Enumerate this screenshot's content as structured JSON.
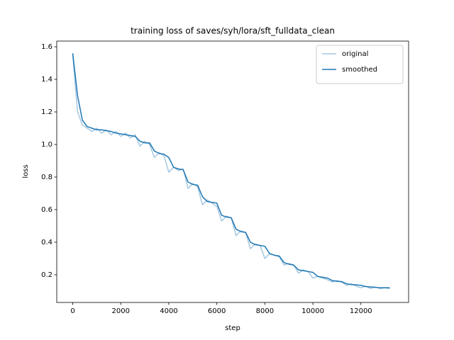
{
  "chart_data": {
    "type": "line",
    "title": "training loss of saves/syh/lora/sft_fulldata_clean",
    "xlabel": "step",
    "ylabel": "loss",
    "x": [
      0,
      200,
      400,
      600,
      800,
      1000,
      1200,
      1400,
      1600,
      1800,
      2000,
      2200,
      2400,
      2600,
      2800,
      3000,
      3200,
      3400,
      3600,
      3800,
      4000,
      4200,
      4400,
      4600,
      4800,
      5000,
      5200,
      5400,
      5600,
      5800,
      6000,
      6200,
      6400,
      6600,
      6800,
      7000,
      7200,
      7400,
      7600,
      7800,
      8000,
      8200,
      8400,
      8600,
      8800,
      9000,
      9200,
      9400,
      9600,
      9800,
      10000,
      10200,
      10400,
      10600,
      10800,
      11000,
      11200,
      11400,
      11600,
      11800,
      12000,
      12200,
      12400,
      12600,
      12800,
      13000,
      13200
    ],
    "series": [
      {
        "name": "original",
        "color": "#a5c8e1",
        "values": [
          1.55,
          1.2,
          1.12,
          1.1,
          1.08,
          1.1,
          1.07,
          1.09,
          1.06,
          1.08,
          1.05,
          1.07,
          1.04,
          1.06,
          0.99,
          1.02,
          1.0,
          0.92,
          0.95,
          0.93,
          0.83,
          0.86,
          0.84,
          0.85,
          0.73,
          0.76,
          0.74,
          0.63,
          0.66,
          0.64,
          0.62,
          0.53,
          0.56,
          0.55,
          0.44,
          0.47,
          0.46,
          0.36,
          0.39,
          0.38,
          0.3,
          0.33,
          0.32,
          0.31,
          0.26,
          0.27,
          0.26,
          0.21,
          0.23,
          0.22,
          0.18,
          0.19,
          0.18,
          0.17,
          0.155,
          0.165,
          0.155,
          0.135,
          0.145,
          0.13,
          0.12,
          0.13,
          0.115,
          0.125,
          0.115,
          0.12,
          0.115
        ]
      },
      {
        "name": "smoothed",
        "color": "#1f77b4",
        "values": [
          1.56,
          1.3,
          1.15,
          1.11,
          1.1,
          1.09,
          1.09,
          1.085,
          1.08,
          1.07,
          1.065,
          1.06,
          1.055,
          1.05,
          1.02,
          1.01,
          1.01,
          0.96,
          0.945,
          0.94,
          0.92,
          0.86,
          0.85,
          0.845,
          0.77,
          0.755,
          0.75,
          0.68,
          0.65,
          0.645,
          0.64,
          0.565,
          0.555,
          0.55,
          0.48,
          0.465,
          0.46,
          0.4,
          0.385,
          0.38,
          0.375,
          0.33,
          0.32,
          0.315,
          0.275,
          0.265,
          0.26,
          0.23,
          0.225,
          0.22,
          0.215,
          0.19,
          0.185,
          0.18,
          0.165,
          0.16,
          0.158,
          0.145,
          0.14,
          0.138,
          0.135,
          0.128,
          0.125,
          0.123,
          0.12,
          0.12,
          0.12
        ]
      }
    ],
    "xlim": [
      -666,
      13986
    ],
    "ylim": [
      0.03,
      1.635
    ],
    "xticks": [
      0,
      2000,
      4000,
      6000,
      8000,
      10000,
      12000
    ],
    "yticks": [
      0.2,
      0.4,
      0.6,
      0.8,
      {
        "value": 1,
        "label": "1.0"
      },
      1.2,
      1.4,
      1.6
    ],
    "grid": false,
    "legend": "upper right"
  }
}
